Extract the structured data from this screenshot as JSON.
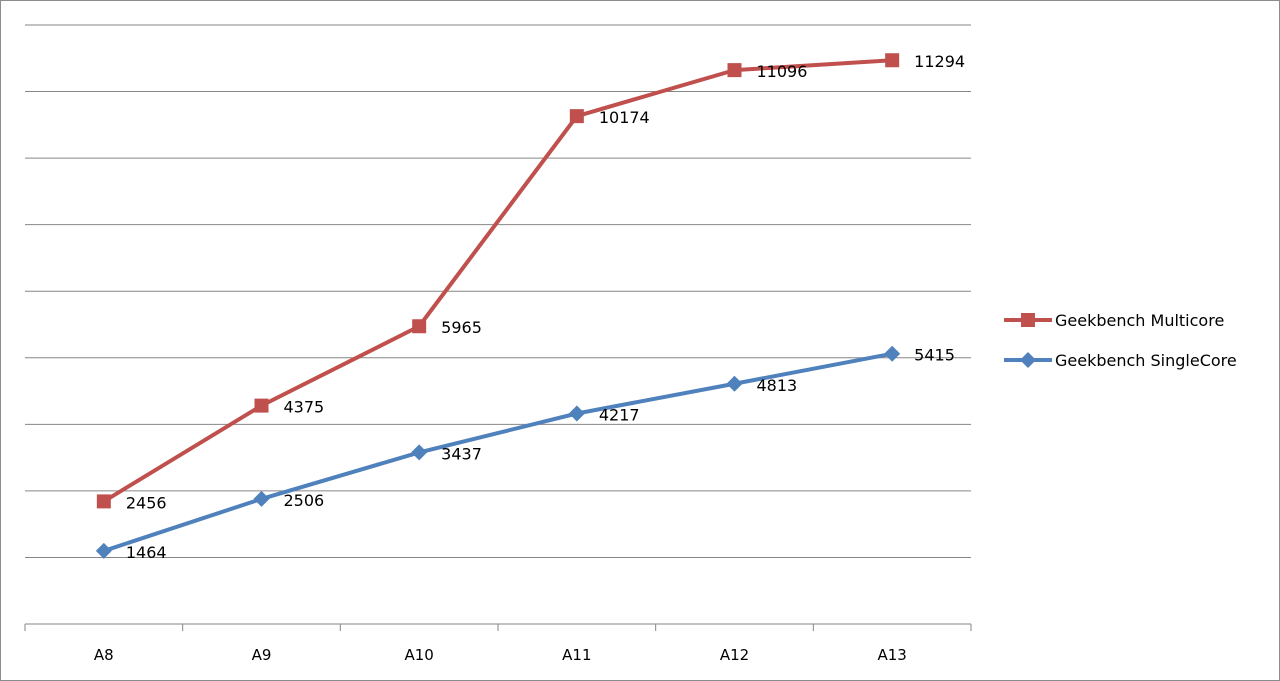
{
  "chart_data": {
    "type": "line",
    "title": "",
    "xlabel": "",
    "ylabel": "",
    "categories": [
      "A8",
      "A9",
      "A10",
      "A11",
      "A12",
      "A13"
    ],
    "ylim": [
      0,
      12000
    ],
    "y_tick_labels_shown": false,
    "grid": true,
    "legend_placement": "right",
    "data_labels": true,
    "series": [
      {
        "name": "Geekbench Multicore",
        "values": [
          2456,
          4375,
          5965,
          10174,
          11096,
          11294
        ],
        "color": "#c0504d",
        "marker": "square"
      },
      {
        "name": "Geekbench SingleCore",
        "values": [
          1464,
          2506,
          3437,
          4217,
          4813,
          5415
        ],
        "color": "#4f81bd",
        "marker": "diamond"
      }
    ]
  }
}
